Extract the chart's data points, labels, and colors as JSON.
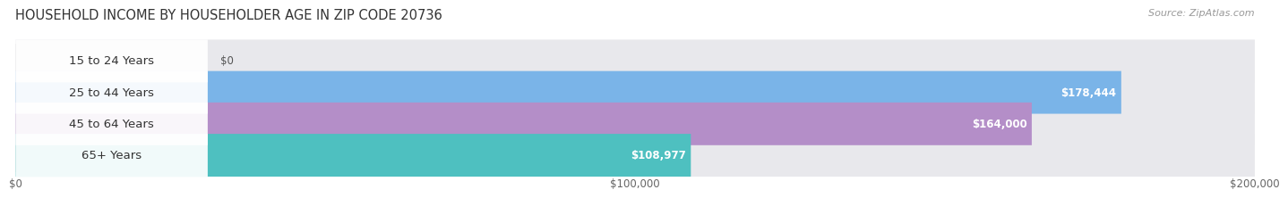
{
  "title": "HOUSEHOLD INCOME BY HOUSEHOLDER AGE IN ZIP CODE 20736",
  "source": "Source: ZipAtlas.com",
  "categories": [
    "15 to 24 Years",
    "25 to 44 Years",
    "45 to 64 Years",
    "65+ Years"
  ],
  "values": [
    0,
    178444,
    164000,
    108977
  ],
  "labels": [
    "$0",
    "$178,444",
    "$164,000",
    "$108,977"
  ],
  "bar_colors": [
    "#f0a0aa",
    "#7ab4e8",
    "#b48ec8",
    "#4ec0c0"
  ],
  "bar_bg_color": "#e8e8ec",
  "max_value": 200000,
  "xticks": [
    0,
    100000,
    200000
  ],
  "xtick_labels": [
    "$0",
    "$100,000",
    "$200,000"
  ],
  "title_fontsize": 10.5,
  "source_fontsize": 8,
  "label_fontsize": 8.5,
  "category_fontsize": 9.5,
  "fig_bg_color": "#ffffff",
  "bar_height": 0.68
}
